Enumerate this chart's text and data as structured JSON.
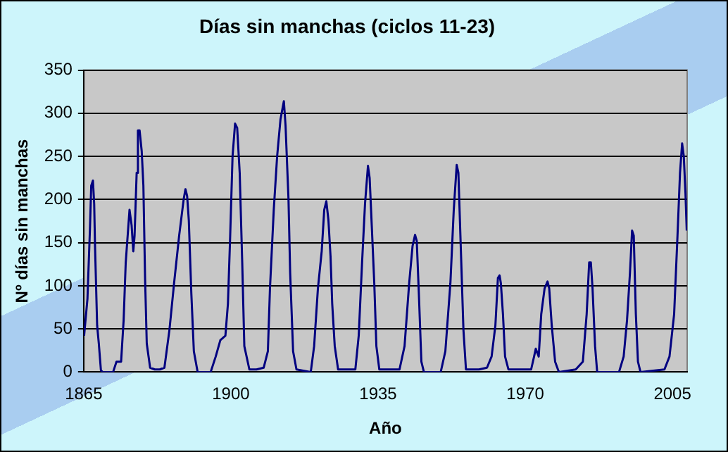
{
  "chart_data": {
    "type": "line",
    "title": "Días sin manchas (ciclos 11-23)",
    "xlabel": "Año",
    "ylabel": "Nº días sin manchas",
    "grid": "y",
    "marker": "none",
    "line_style": "solid",
    "legend": false,
    "xlim": [
      1865,
      2008.5
    ],
    "xticks": [
      1865,
      1900,
      1935,
      1970,
      2005
    ],
    "ylim": [
      0,
      350
    ],
    "yticks": [
      0,
      50,
      100,
      150,
      200,
      250,
      300,
      350
    ],
    "series": [
      {
        "color": "#000080",
        "x": [
          1865.1,
          1865.9,
          1866.5,
          1866.8,
          1867.2,
          1867.5,
          1867.7,
          1868.2,
          1868.6,
          1869.1,
          1869.5,
          1872.0,
          1872.8,
          1873.9,
          1874.5,
          1875.0,
          1875.9,
          1876.4,
          1876.8,
          1877.1,
          1877.6,
          1877.9,
          1878.3,
          1878.8,
          1879.2,
          1879.6,
          1880.0,
          1880.8,
          1881.9,
          1883.1,
          1884.2,
          1885.4,
          1886.5,
          1887.7,
          1888.8,
          1889.2,
          1889.6,
          1890.0,
          1890.6,
          1891.2,
          1892.1,
          1895.2,
          1896.4,
          1897.5,
          1898.7,
          1899.3,
          1899.8,
          1900.4,
          1901.0,
          1901.5,
          1902.1,
          1902.7,
          1903.2,
          1904.4,
          1906.1,
          1907.8,
          1908.8,
          1909.3,
          1910.2,
          1911.0,
          1911.8,
          1912.6,
          1913.0,
          1913.7,
          1914.1,
          1914.8,
          1915.6,
          1919.0,
          1919.8,
          1920.7,
          1921.6,
          1922.2,
          1922.7,
          1923.2,
          1923.7,
          1924.1,
          1924.7,
          1925.5,
          1929.6,
          1930.4,
          1931.2,
          1931.9,
          1932.6,
          1933.0,
          1933.5,
          1934.1,
          1934.6,
          1935.3,
          1940.1,
          1941.3,
          1942.4,
          1943.2,
          1943.8,
          1944.2,
          1944.7,
          1945.3,
          1945.9,
          1949.9,
          1951.0,
          1952.2,
          1953.0,
          1953.7,
          1954.1,
          1954.7,
          1955.3,
          1955.9,
          1959.0,
          1960.9,
          1962.0,
          1962.9,
          1963.5,
          1963.9,
          1964.2,
          1964.7,
          1965.2,
          1966.0,
          1971.4,
          1972.1,
          1972.5,
          1973.2,
          1973.8,
          1974.6,
          1975.3,
          1975.7,
          1976.3,
          1977.1,
          1978.0,
          1982.0,
          1983.7,
          1984.6,
          1985.2,
          1985.6,
          1986.0,
          1986.6,
          1987.1,
          1992.3,
          1993.4,
          1994.2,
          1994.9,
          1995.4,
          1995.8,
          1996.3,
          1996.8,
          1997.4,
          2003.1,
          2004.3,
          2005.4,
          2006.2,
          2006.8,
          2007.3,
          2007.7,
          2008.1,
          2008.4
        ],
        "values": [
          42,
          85,
          167,
          216,
          222,
          195,
          146,
          54,
          33,
          2,
          0,
          0,
          12,
          12,
          60,
          127,
          188,
          170,
          140,
          158,
          231,
          280,
          280,
          256,
          216,
          109,
          33,
          5,
          3,
          3,
          5,
          49,
          103,
          158,
          201,
          212,
          204,
          176,
          91,
          24,
          0,
          0,
          18,
          37,
          42,
          79,
          152,
          250,
          288,
          283,
          231,
          127,
          30,
          3,
          3,
          5,
          24,
          97,
          188,
          250,
          293,
          314,
          286,
          201,
          115,
          24,
          3,
          0,
          30,
          97,
          140,
          188,
          198,
          176,
          134,
          79,
          30,
          3,
          3,
          42,
          127,
          195,
          239,
          225,
          170,
          103,
          30,
          3,
          3,
          30,
          103,
          146,
          159,
          152,
          91,
          12,
          0,
          0,
          24,
          103,
          188,
          240,
          231,
          140,
          49,
          3,
          3,
          5,
          18,
          54,
          109,
          112,
          103,
          67,
          18,
          3,
          3,
          18,
          27,
          18,
          67,
          97,
          105,
          97,
          54,
          12,
          0,
          3,
          12,
          67,
          127,
          127,
          97,
          30,
          0,
          0,
          18,
          60,
          115,
          164,
          158,
          67,
          12,
          0,
          3,
          18,
          67,
          158,
          231,
          265,
          250,
          207,
          164
        ]
      }
    ]
  }
}
